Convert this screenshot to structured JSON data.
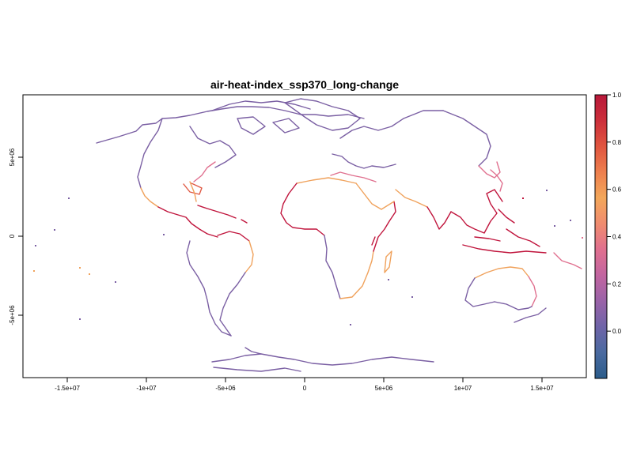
{
  "title": "air-heat-index_ssp370_long-change",
  "x_axis": {
    "ticks": [
      -15000000,
      -10000000,
      -5000000,
      0,
      5000000,
      10000000,
      15000000
    ],
    "tick_labels": [
      "-1.5e+07",
      "-1e+07",
      "-5e+06",
      "0",
      "5e+06",
      "1e+07",
      "1.5e+07"
    ]
  },
  "y_axis": {
    "ticks": [
      5000000,
      0,
      -5000000
    ],
    "tick_labels": [
      "5e+06",
      "0",
      "-5e+06"
    ]
  },
  "colorbar": {
    "ticks": [
      1.0,
      0.8,
      0.6,
      0.4,
      0.2,
      0.0
    ],
    "tick_labels": [
      "1.0",
      "0.8",
      "0.6",
      "0.4",
      "0.2",
      "0.0"
    ],
    "range": [
      -0.2,
      1.0
    ],
    "colors": [
      "#2b5c8a",
      "#4a6aa0",
      "#6f64a8",
      "#9a63a8",
      "#c265a0",
      "#e0708f",
      "#f08c6f",
      "#f3a75a",
      "#ee7f4e",
      "#e0553f",
      "#cc2f3b",
      "#b8183a"
    ]
  },
  "colors": {
    "low": "#7a5fa3",
    "mid": "#f0a25c",
    "high": "#c0143c",
    "frame": "#000000"
  }
}
